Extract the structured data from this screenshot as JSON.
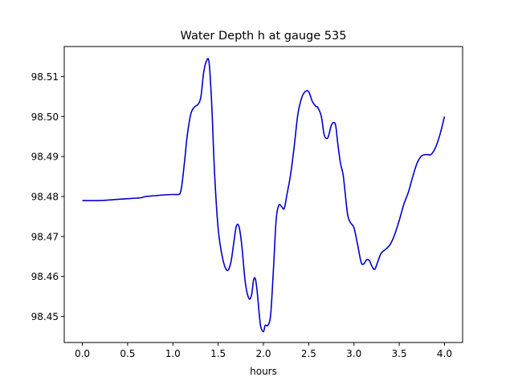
{
  "chart_data": {
    "type": "line",
    "title": "Water Depth h at gauge 535",
    "xlabel": "hours",
    "ylabel": "",
    "xlim": [
      -0.2,
      4.2
    ],
    "ylim": [
      98.4435,
      98.5175
    ],
    "xticks": [
      0.0,
      0.5,
      1.0,
      1.5,
      2.0,
      2.5,
      3.0,
      3.5,
      4.0
    ],
    "xtick_labels": [
      "0.0",
      "0.5",
      "1.0",
      "1.5",
      "2.0",
      "2.5",
      "3.0",
      "3.5",
      "4.0"
    ],
    "yticks": [
      98.45,
      98.46,
      98.47,
      98.48,
      98.49,
      98.5,
      98.51
    ],
    "ytick_labels": [
      "98.45",
      "98.46",
      "98.47",
      "98.48",
      "98.49",
      "98.50",
      "98.51"
    ],
    "grid": false,
    "series": [
      {
        "color": "#0000cc",
        "x": [
          0.0,
          0.2,
          0.4,
          0.6,
          0.65,
          0.7,
          0.8,
          0.9,
          1.0,
          1.05,
          1.08,
          1.1,
          1.13,
          1.16,
          1.2,
          1.24,
          1.28,
          1.31,
          1.34,
          1.37,
          1.4,
          1.43,
          1.46,
          1.5,
          1.55,
          1.6,
          1.64,
          1.67,
          1.7,
          1.73,
          1.76,
          1.8,
          1.84,
          1.87,
          1.89,
          1.91,
          1.93,
          1.95,
          1.97,
          2.0,
          2.02,
          2.05,
          2.08,
          2.11,
          2.14,
          2.17,
          2.2,
          2.23,
          2.26,
          2.3,
          2.34,
          2.38,
          2.42,
          2.46,
          2.5,
          2.54,
          2.58,
          2.6,
          2.64,
          2.67,
          2.7,
          2.72,
          2.75,
          2.78,
          2.8,
          2.82,
          2.85,
          2.88,
          2.9,
          2.93,
          2.96,
          3.0,
          3.04,
          3.08,
          3.11,
          3.14,
          3.17,
          3.2,
          3.23,
          3.26,
          3.3,
          3.35,
          3.4,
          3.45,
          3.5,
          3.55,
          3.6,
          3.65,
          3.7,
          3.75,
          3.8,
          3.85,
          3.9,
          3.95,
          4.0
        ],
        "y": [
          98.479,
          98.479,
          98.4793,
          98.4796,
          98.4797,
          98.48,
          98.4802,
          98.4804,
          98.4805,
          98.4805,
          98.4808,
          98.483,
          98.489,
          98.4955,
          98.5008,
          98.5024,
          98.5031,
          98.505,
          98.511,
          98.5138,
          98.5135,
          98.5025,
          98.486,
          98.472,
          98.4645,
          98.4615,
          98.4635,
          98.468,
          98.4725,
          98.4725,
          98.468,
          98.4585,
          98.4545,
          98.4555,
          98.459,
          98.4595,
          98.4565,
          98.4515,
          98.4475,
          98.4462,
          98.4478,
          98.4478,
          98.4505,
          98.4615,
          98.474,
          98.4778,
          98.4775,
          98.477,
          98.4805,
          98.4855,
          98.4925,
          98.5005,
          98.5045,
          98.5062,
          98.5062,
          98.5038,
          98.5025,
          98.5023,
          98.5,
          98.4955,
          98.4945,
          98.4952,
          98.4978,
          98.4985,
          98.4975,
          98.4935,
          98.4885,
          98.4855,
          98.4815,
          98.4755,
          98.4735,
          98.4722,
          98.468,
          98.4635,
          98.4632,
          98.4642,
          98.464,
          98.4625,
          98.4618,
          98.4635,
          98.4658,
          98.4668,
          98.468,
          98.4705,
          98.474,
          98.478,
          98.481,
          98.485,
          98.4885,
          98.4902,
          98.4905,
          98.4905,
          98.4922,
          98.4955,
          98.5
        ]
      }
    ]
  }
}
